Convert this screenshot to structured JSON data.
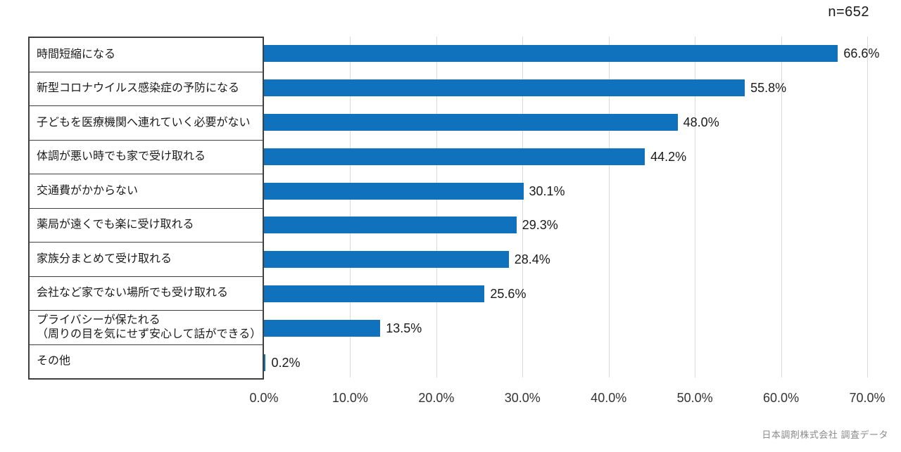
{
  "chart_data": {
    "type": "bar",
    "orientation": "horizontal",
    "title": "",
    "n_label": "n=652",
    "categories": [
      "時間短縮になる",
      "新型コロナウイルス感染症の予防になる",
      "子どもを医療機関へ連れていく必要がない",
      "体調が悪い時でも家で受け取れる",
      "交通費がかからない",
      "薬局が遠くでも楽に受け取れる",
      "家族分まとめて受け取れる",
      "会社など家でない場所でも受け取れる",
      "プライバシーが保たれる\n（周りの目を気にせず安心して話ができる）",
      "その他"
    ],
    "values": [
      66.6,
      55.8,
      48.0,
      44.2,
      30.1,
      29.3,
      28.4,
      25.6,
      13.5,
      0.2
    ],
    "value_labels": [
      "66.6%",
      "55.8%",
      "48.0%",
      "44.2%",
      "30.1%",
      "29.3%",
      "28.4%",
      "25.6%",
      "13.5%",
      "0.2%"
    ],
    "xlabel": "",
    "ylabel": "",
    "xlim": [
      0,
      70
    ],
    "x_ticks": [
      "0.0%",
      "10.0%",
      "20.0%",
      "30.0%",
      "40.0%",
      "50.0%",
      "60.0%",
      "70.0%"
    ],
    "grid": "vertical-only",
    "legend": "none",
    "bar_color": "#1072bc",
    "gridline_color": "#d9d9d9",
    "source_note": "日本調剤株式会社 調査データ"
  }
}
